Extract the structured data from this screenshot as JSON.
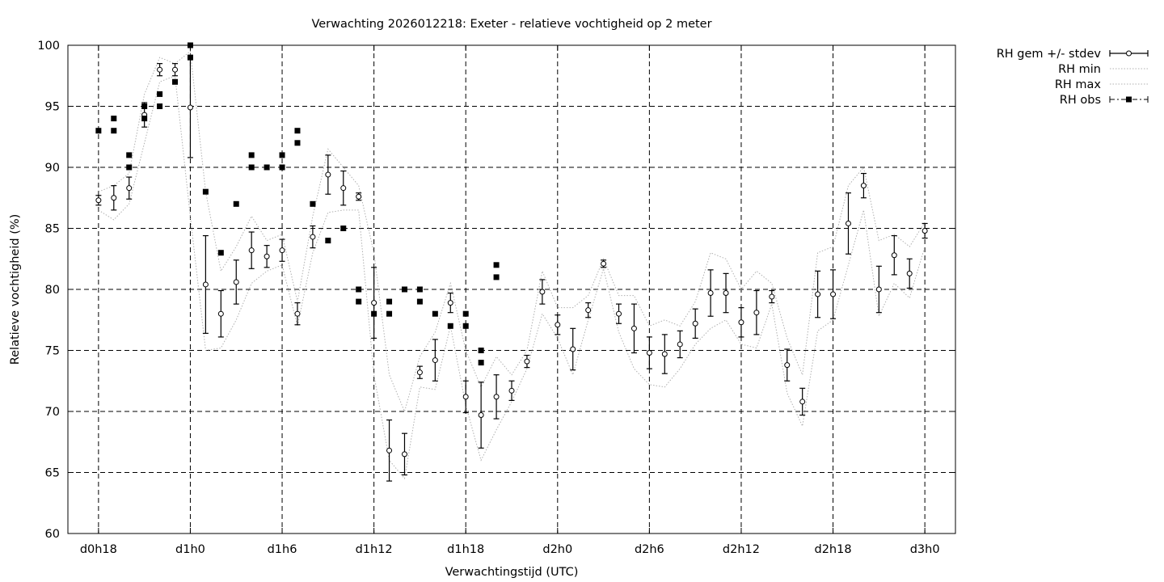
{
  "chart_data": {
    "type": "scatter",
    "title": "Verwachting 2026012218: Exeter - relatieve vochtigheid op 2 meter",
    "xlabel": "Verwachtingstijd (UTC)",
    "ylabel": "Relatieve vochtigheid (%)",
    "x_unit": "hours since d0h0",
    "xlim": [
      16,
      74
    ],
    "ylim": [
      60,
      100
    ],
    "x_ticks": [
      {
        "x": 18,
        "label": "d0h18"
      },
      {
        "x": 24,
        "label": "d1h0"
      },
      {
        "x": 30,
        "label": "d1h6"
      },
      {
        "x": 36,
        "label": "d1h12"
      },
      {
        "x": 42,
        "label": "d1h18"
      },
      {
        "x": 48,
        "label": "d2h0"
      },
      {
        "x": 54,
        "label": "d2h6"
      },
      {
        "x": 60,
        "label": "d2h12"
      },
      {
        "x": 66,
        "label": "d2h18"
      },
      {
        "x": 72,
        "label": "d3h0"
      }
    ],
    "y_ticks": [
      {
        "y": 60,
        "label": "60"
      },
      {
        "y": 65,
        "label": "65"
      },
      {
        "y": 70,
        "label": "70"
      },
      {
        "y": 75,
        "label": "75"
      },
      {
        "y": 80,
        "label": "80"
      },
      {
        "y": 85,
        "label": "85"
      },
      {
        "y": 90,
        "label": "90"
      },
      {
        "y": 95,
        "label": "95"
      },
      {
        "y": 100,
        "label": "100"
      }
    ],
    "grid": true,
    "legend_position": "outside-top-right",
    "legend": [
      {
        "label": "RH gem +/- stdev",
        "style": "errorbar-open-circle"
      },
      {
        "label": "RH min",
        "style": "dotted-line"
      },
      {
        "label": "RH max",
        "style": "dotted-line"
      },
      {
        "label": "RH obs",
        "style": "filled-square"
      }
    ],
    "series": [
      {
        "name": "RH gem +/- stdev",
        "x": [
          18,
          19,
          20,
          21,
          22,
          23,
          24,
          25,
          26,
          27,
          28,
          29,
          30,
          31,
          32,
          33,
          34,
          35,
          36,
          37,
          38,
          39,
          40,
          41,
          42,
          43,
          44,
          45,
          46,
          47,
          48,
          49,
          50,
          51,
          52,
          53,
          54,
          55,
          56,
          57,
          58,
          59,
          60,
          61,
          62,
          63,
          64,
          65,
          66,
          67,
          68,
          69,
          70,
          71,
          72
        ],
        "values": [
          87.3,
          87.5,
          88.3,
          94.3,
          98.0,
          98.0,
          94.9,
          80.4,
          78.0,
          80.6,
          83.2,
          82.7,
          83.2,
          78.0,
          84.3,
          89.4,
          88.3,
          87.6,
          78.9,
          66.8,
          66.5,
          73.2,
          74.2,
          78.9,
          71.2,
          69.7,
          71.2,
          71.7,
          74.1,
          79.8,
          77.1,
          75.1,
          78.3,
          82.1,
          78.0,
          76.8,
          74.8,
          74.7,
          75.5,
          77.2,
          79.7,
          79.7,
          77.3,
          78.1,
          79.4,
          73.8,
          70.8,
          79.6,
          79.6,
          85.4,
          88.5,
          80.0,
          82.8,
          81.3,
          84.8
        ],
        "stdev": [
          0.4,
          1.0,
          0.9,
          1.0,
          0.5,
          0.5,
          4.1,
          4.0,
          1.9,
          1.8,
          1.5,
          0.9,
          0.9,
          0.9,
          0.9,
          1.6,
          1.4,
          0.3,
          2.9,
          2.5,
          1.7,
          0.5,
          1.7,
          0.8,
          1.3,
          2.7,
          1.8,
          0.8,
          0.5,
          1.0,
          0.8,
          1.7,
          0.6,
          0.3,
          0.8,
          2.0,
          1.3,
          1.6,
          1.1,
          1.2,
          1.9,
          1.6,
          1.2,
          1.8,
          0.5,
          1.3,
          1.1,
          1.9,
          2.0,
          2.5,
          1.0,
          1.9,
          1.6,
          1.2,
          0.6
        ]
      },
      {
        "name": "RH min",
        "x": [
          18,
          19,
          20,
          21,
          22,
          23,
          24,
          25,
          26,
          27,
          28,
          29,
          30,
          31,
          32,
          33,
          34,
          35,
          36,
          37,
          38,
          39,
          40,
          41,
          42,
          43,
          44,
          45,
          46,
          47,
          48,
          49,
          50,
          51,
          52,
          53,
          54,
          55,
          56,
          57,
          58,
          59,
          60,
          61,
          62,
          63,
          64,
          65,
          66,
          67,
          68,
          69,
          70,
          71,
          72
        ],
        "values": [
          86.5,
          85.7,
          87.0,
          92.0,
          97.0,
          97.5,
          86.0,
          75.0,
          75.2,
          77.5,
          80.5,
          81.5,
          82.0,
          77.0,
          83.0,
          86.3,
          86.5,
          86.5,
          73.0,
          66.0,
          64.5,
          72.0,
          71.8,
          77.0,
          70.5,
          66.0,
          68.5,
          70.8,
          73.5,
          78.0,
          76.0,
          73.0,
          77.5,
          81.7,
          76.5,
          73.5,
          72.2,
          72.0,
          73.5,
          75.5,
          76.8,
          77.5,
          75.5,
          75.2,
          78.8,
          71.5,
          68.8,
          76.6,
          77.5,
          82.0,
          86.5,
          77.8,
          80.5,
          79.3,
          83.5
        ]
      },
      {
        "name": "RH max",
        "x": [
          18,
          19,
          20,
          21,
          22,
          23,
          24,
          25,
          26,
          27,
          28,
          29,
          30,
          31,
          32,
          33,
          34,
          35,
          36,
          37,
          38,
          39,
          40,
          41,
          42,
          43,
          44,
          45,
          46,
          47,
          48,
          49,
          50,
          51,
          52,
          53,
          54,
          55,
          56,
          57,
          58,
          59,
          60,
          61,
          62,
          63,
          64,
          65,
          66,
          67,
          68,
          69,
          70,
          71,
          72
        ],
        "values": [
          88.0,
          88.5,
          89.5,
          96.0,
          99.0,
          98.5,
          99.5,
          88.0,
          81.5,
          83.5,
          86.0,
          84.0,
          84.5,
          79.0,
          86.0,
          91.5,
          90.0,
          88.5,
          83.0,
          73.0,
          70.0,
          74.5,
          76.5,
          80.5,
          75.0,
          72.0,
          74.5,
          73.0,
          75.0,
          81.5,
          78.5,
          78.5,
          79.5,
          82.5,
          79.5,
          79.5,
          77.0,
          77.5,
          77.0,
          79.0,
          83.0,
          82.5,
          80.0,
          81.5,
          80.5,
          76.0,
          73.0,
          83.0,
          83.5,
          88.5,
          90.0,
          84.0,
          84.5,
          83.5,
          85.5
        ]
      },
      {
        "name": "RH obs",
        "x": [
          18,
          19,
          19,
          20,
          20,
          21,
          21,
          22,
          22,
          23,
          24,
          24,
          25,
          26,
          27,
          28,
          28,
          29,
          30,
          30,
          31,
          31,
          32,
          33,
          34,
          35,
          35,
          36,
          37,
          37,
          38,
          39,
          39,
          40,
          41,
          42,
          42,
          43,
          43,
          44,
          44
        ],
        "values": [
          93,
          94,
          93,
          91,
          90,
          95,
          94,
          96,
          95,
          97,
          100,
          99,
          88,
          83,
          87,
          91,
          90,
          90,
          91,
          90,
          93,
          92,
          87,
          84,
          85,
          80,
          79,
          78,
          79,
          78,
          80,
          80,
          79,
          78,
          77,
          78,
          77,
          75,
          74,
          82,
          81
        ]
      }
    ]
  }
}
